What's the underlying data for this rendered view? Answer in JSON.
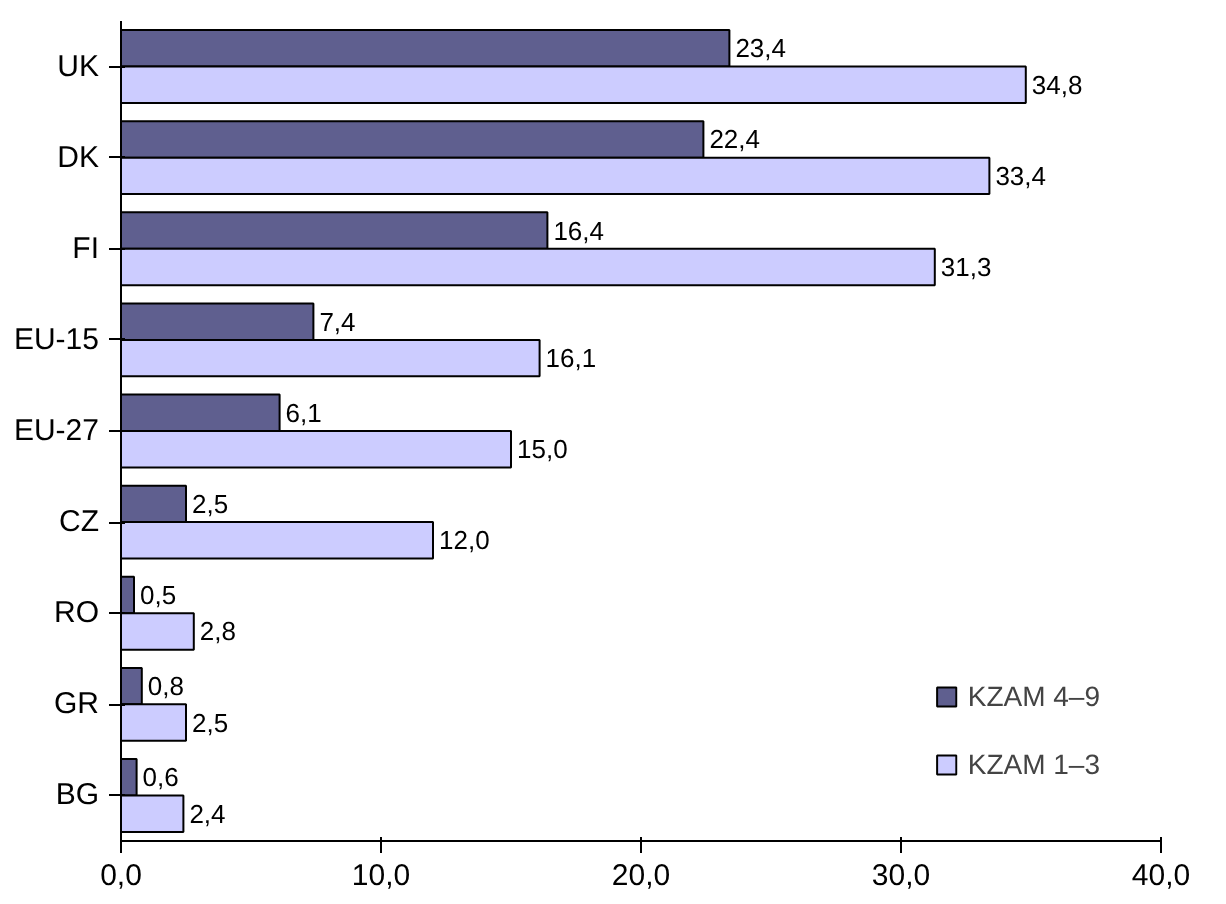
{
  "chart_data": {
    "type": "bar",
    "orientation": "horizontal",
    "categories": [
      "UK",
      "DK",
      "FI",
      "EU-15",
      "EU-27",
      "CZ",
      "RO",
      "GR",
      "BG"
    ],
    "series": [
      {
        "name": "KZAM 4–9",
        "color": "#5f5f8f",
        "values": [
          23.4,
          22.4,
          16.4,
          7.4,
          6.1,
          2.5,
          0.5,
          0.8,
          0.6
        ],
        "value_labels": [
          "23,4",
          "22,4",
          "16,4",
          "7,4",
          "6,1",
          "2,5",
          "0,5",
          "0,8",
          "0,6"
        ]
      },
      {
        "name": "KZAM 1–3",
        "color": "#ccccff",
        "values": [
          34.8,
          33.4,
          31.3,
          16.1,
          15.0,
          12.0,
          2.8,
          2.5,
          2.4
        ],
        "value_labels": [
          "34,8",
          "33,4",
          "31,3",
          "16,1",
          "15,0",
          "12,0",
          "2,8",
          "2,5",
          "2,4"
        ]
      }
    ],
    "xlim": [
      0,
      40
    ],
    "xticks": [
      {
        "value": 0,
        "label": "0,0"
      },
      {
        "value": 10,
        "label": "10,0"
      },
      {
        "value": 20,
        "label": "20,0"
      },
      {
        "value": 30,
        "label": "30,0"
      },
      {
        "value": 40,
        "label": "40,0"
      }
    ],
    "grid": false,
    "legend": "bottom right"
  }
}
